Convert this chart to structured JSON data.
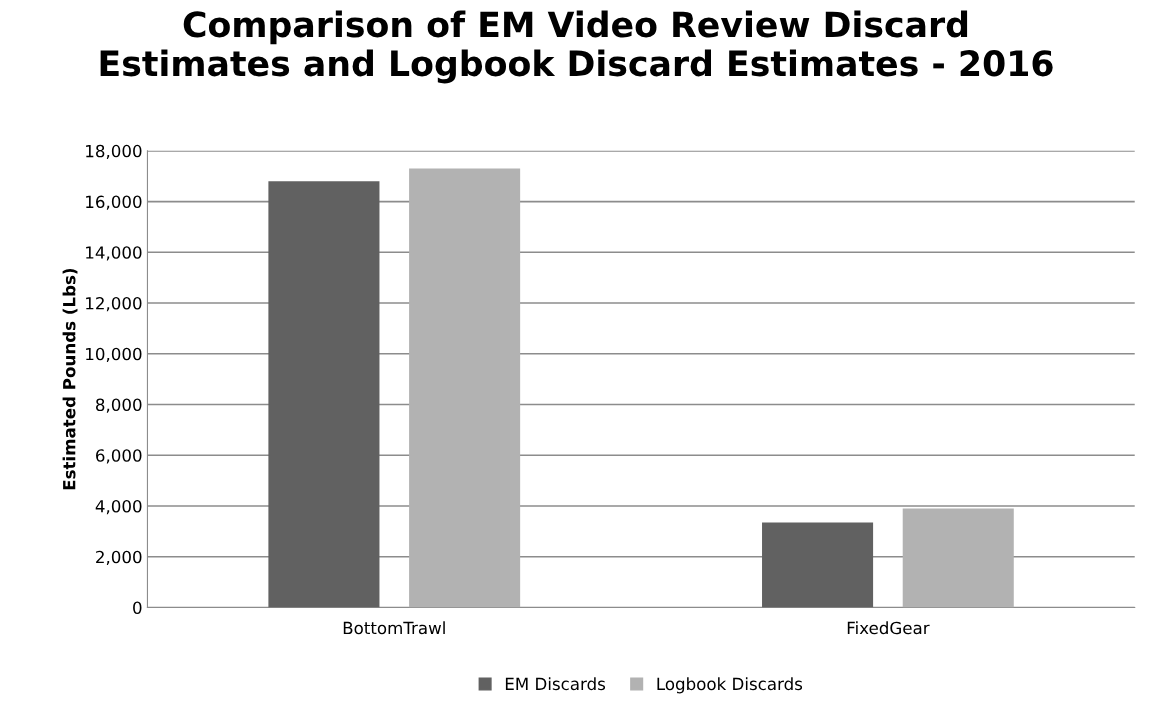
{
  "chart_data": {
    "type": "bar",
    "title": "Comparison of EM Video Review Discard\nEstimates and Logbook Discard Estimates - 2016",
    "ylabel": "Estimated Pounds (Lbs)",
    "categories": [
      "BottomTrawl",
      "FixedGear"
    ],
    "series": [
      {
        "name": "EM Discards",
        "color": "#616161",
        "values": [
          16800,
          3350
        ]
      },
      {
        "name": "Logbook Discards",
        "color": "#b2b2b2",
        "values": [
          17300,
          3900
        ]
      }
    ],
    "ylim": [
      0,
      18000
    ],
    "yticks": [
      {
        "value": 0,
        "label": "0"
      },
      {
        "value": 2000,
        "label": "2,000"
      },
      {
        "value": 4000,
        "label": "4,000"
      },
      {
        "value": 6000,
        "label": "6,000"
      },
      {
        "value": 8000,
        "label": "8,000"
      },
      {
        "value": 10000,
        "label": "10,000"
      },
      {
        "value": 12000,
        "label": "12,000"
      },
      {
        "value": 14000,
        "label": "14,000"
      },
      {
        "value": 16000,
        "label": "16,000"
      },
      {
        "value": 18000,
        "label": "18,000"
      }
    ],
    "grid": "y",
    "legend": "bottom"
  }
}
